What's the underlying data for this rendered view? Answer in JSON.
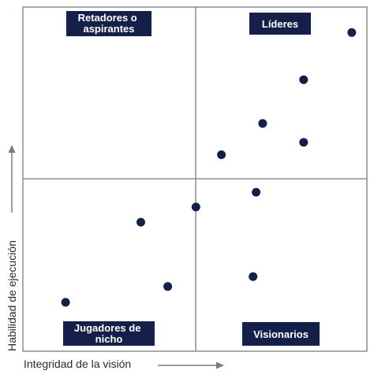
{
  "chart_data": {
    "type": "scatter",
    "xlabel": "Integridad de la visión",
    "ylabel": "Habilidad de ejecución",
    "xlim": [
      0,
      100
    ],
    "ylim": [
      0,
      100
    ],
    "grid": false,
    "quadrants": {
      "top_left": [
        "Retadores o",
        "aspirantes"
      ],
      "top_right": [
        "Líderes"
      ],
      "bottom_left": [
        "Jugadores de",
        "nicho"
      ],
      "bottom_right": [
        "Visionarios"
      ]
    },
    "points": [
      {
        "x": 95.6,
        "y": 92.6
      },
      {
        "x": 81.6,
        "y": 78.9
      },
      {
        "x": 69.7,
        "y": 66.2
      },
      {
        "x": 81.6,
        "y": 60.7
      },
      {
        "x": 57.7,
        "y": 57.1
      },
      {
        "x": 67.8,
        "y": 46.2
      },
      {
        "x": 50.3,
        "y": 41.9
      },
      {
        "x": 34.3,
        "y": 37.5
      },
      {
        "x": 42.1,
        "y": 18.8
      },
      {
        "x": 66.9,
        "y": 21.7
      },
      {
        "x": 12.4,
        "y": 14.2
      }
    ]
  },
  "colors": {
    "point": "#15204a",
    "label_bg": "#15204a",
    "frame": "#8a8d93",
    "divider": "#8a8d93",
    "arrow": "#7a7d84"
  }
}
